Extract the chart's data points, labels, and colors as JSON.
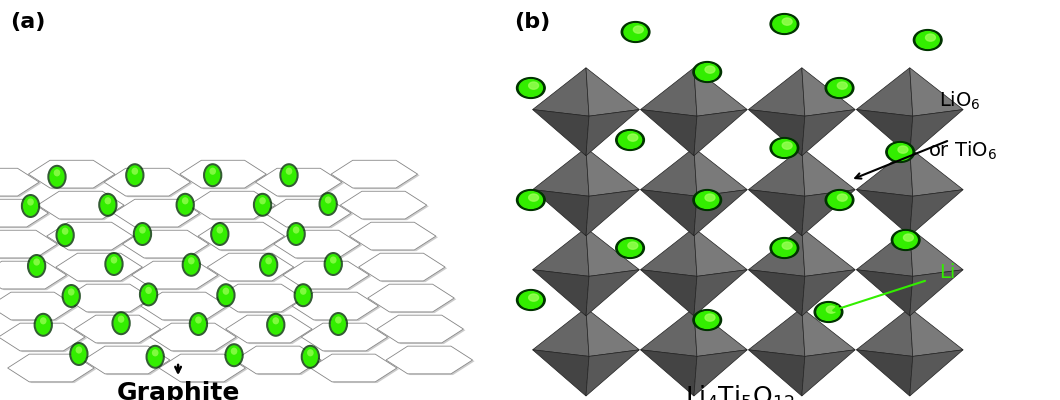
{
  "panel_a_label": "(a)",
  "panel_b_label": "(b)",
  "graphite_label": "Graphite",
  "lio6_label": "LiO",
  "lio6_sub": "6",
  "tio6_label": "or TiO",
  "tio6_sub": "6",
  "li_label": "Li",
  "background_color": "#ffffff",
  "li_green": "#33ee00",
  "li_dark_green": "#005500",
  "oct_light": "#7a7a7a",
  "oct_mid": "#555555",
  "oct_dark": "#3a3a3a",
  "oct_edge": "#222222",
  "hex_edge": "#888888",
  "label_fontsize": 18,
  "panel_label_fontsize": 16
}
